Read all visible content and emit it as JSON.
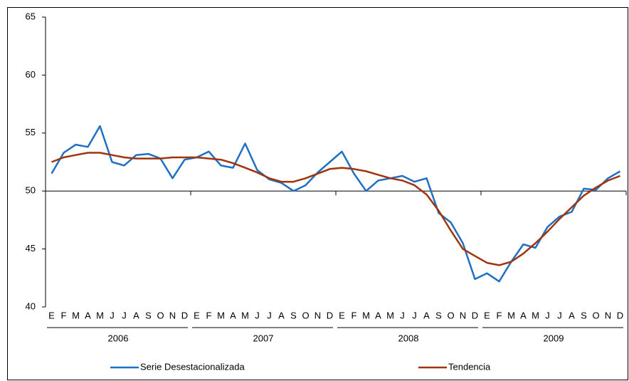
{
  "chart_data": {
    "type": "line",
    "categories": [
      "E",
      "F",
      "M",
      "A",
      "M",
      "J",
      "J",
      "A",
      "S",
      "O",
      "N",
      "D",
      "E",
      "F",
      "M",
      "A",
      "M",
      "J",
      "J",
      "A",
      "S",
      "O",
      "N",
      "D",
      "E",
      "F",
      "M",
      "A",
      "M",
      "J",
      "J",
      "A",
      "S",
      "O",
      "N",
      "D",
      "E",
      "F",
      "M",
      "A",
      "M",
      "J",
      "J",
      "A",
      "S",
      "O",
      "N",
      "D"
    ],
    "category_groups": [
      "2006",
      "2007",
      "2008",
      "2009"
    ],
    "series": [
      {
        "name": "Serie Desestacionalizada",
        "color": "#1f6fc5",
        "values": [
          51.5,
          53.3,
          54.0,
          53.8,
          55.6,
          52.5,
          52.2,
          53.1,
          53.2,
          52.8,
          51.1,
          52.7,
          52.9,
          53.4,
          52.2,
          52.0,
          54.1,
          51.8,
          51.0,
          50.7,
          50.0,
          50.5,
          51.6,
          52.5,
          53.4,
          51.5,
          50.0,
          50.9,
          51.1,
          51.3,
          50.8,
          51.1,
          48.1,
          47.3,
          45.5,
          42.4,
          42.9,
          42.2,
          43.9,
          45.4,
          45.1,
          46.9,
          47.8,
          48.2,
          50.2,
          50.1,
          51.1,
          51.7
        ]
      },
      {
        "name": "Tendencia",
        "color": "#a0340e",
        "values": [
          52.5,
          52.9,
          53.1,
          53.3,
          53.3,
          53.1,
          52.9,
          52.8,
          52.8,
          52.8,
          52.9,
          52.9,
          52.9,
          52.8,
          52.7,
          52.4,
          52.0,
          51.6,
          51.1,
          50.8,
          50.8,
          51.1,
          51.5,
          51.9,
          52.0,
          51.9,
          51.7,
          51.4,
          51.1,
          50.9,
          50.5,
          49.7,
          48.3,
          46.6,
          45.0,
          44.4,
          43.8,
          43.6,
          43.9,
          44.6,
          45.5,
          46.5,
          47.6,
          48.6,
          49.6,
          50.3,
          50.9,
          51.3
        ]
      }
    ],
    "ylim": [
      40,
      65
    ],
    "yticks": [
      40,
      45,
      50,
      55,
      60,
      65
    ],
    "x_axis_crosses": 50
  }
}
